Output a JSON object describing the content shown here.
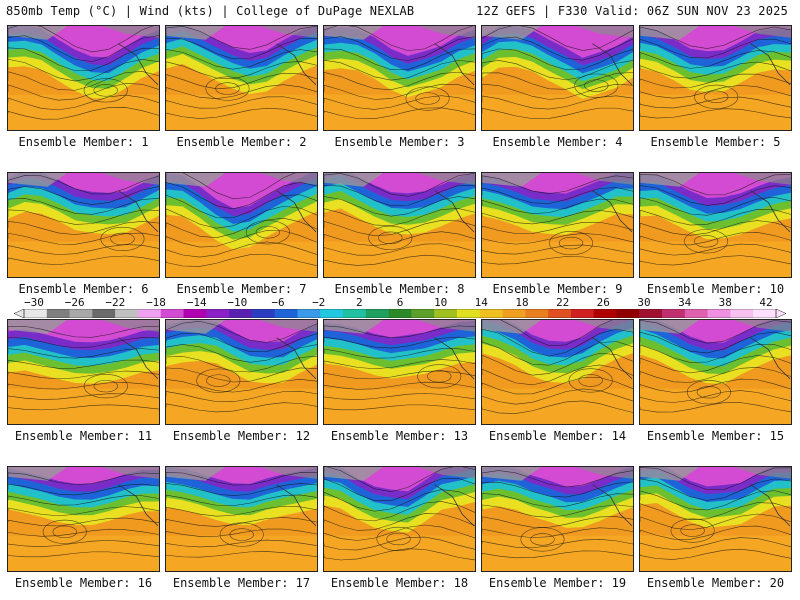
{
  "header": {
    "left": "850mb Temp (°C) | Wind (kts) | College of DuPage NEXLAB",
    "right": "12Z GEFS | F330 Valid: 06Z SUN NOV 23 2025"
  },
  "members": [
    {
      "label": "Ensemble Member: 1"
    },
    {
      "label": "Ensemble Member: 2"
    },
    {
      "label": "Ensemble Member: 3"
    },
    {
      "label": "Ensemble Member: 4"
    },
    {
      "label": "Ensemble Member: 5"
    },
    {
      "label": "Ensemble Member: 6"
    },
    {
      "label": "Ensemble Member: 7"
    },
    {
      "label": "Ensemble Member: 8"
    },
    {
      "label": "Ensemble Member: 9"
    },
    {
      "label": "Ensemble Member: 10"
    },
    {
      "label": "Ensemble Member: 11"
    },
    {
      "label": "Ensemble Member: 12"
    },
    {
      "label": "Ensemble Member: 13"
    },
    {
      "label": "Ensemble Member: 14"
    },
    {
      "label": "Ensemble Member: 15"
    },
    {
      "label": "Ensemble Member: 16"
    },
    {
      "label": "Ensemble Member: 17"
    },
    {
      "label": "Ensemble Member: 18"
    },
    {
      "label": "Ensemble Member: 19"
    },
    {
      "label": "Ensemble Member: 20"
    }
  ],
  "colorbar": {
    "ticks": [
      "-30",
      "-26",
      "-22",
      "-18",
      "-14",
      "-10",
      "-6",
      "-2",
      "2",
      "6",
      "10",
      "14",
      "18",
      "22",
      "26",
      "30",
      "34",
      "38",
      "42"
    ],
    "colors": [
      "#e8e8e8",
      "#7f7f7f",
      "#a8a8a8",
      "#6b6b6b",
      "#c0c0c0",
      "#f0a0f0",
      "#d24bd2",
      "#b000b0",
      "#8a20c8",
      "#5a20b0",
      "#2a3cc0",
      "#1e64d8",
      "#3a9ae8",
      "#20c8e0",
      "#20c0a0",
      "#20a060",
      "#2a8a2a",
      "#5aa02a",
      "#a0c020",
      "#e0e020",
      "#f0c020",
      "#f0a020",
      "#e88020",
      "#e05020",
      "#d02020",
      "#b00000",
      "#900000",
      "#a01030",
      "#c03070",
      "#e060b0",
      "#f090e0",
      "#f8c0f0",
      "#ffe0ff"
    ]
  }
}
